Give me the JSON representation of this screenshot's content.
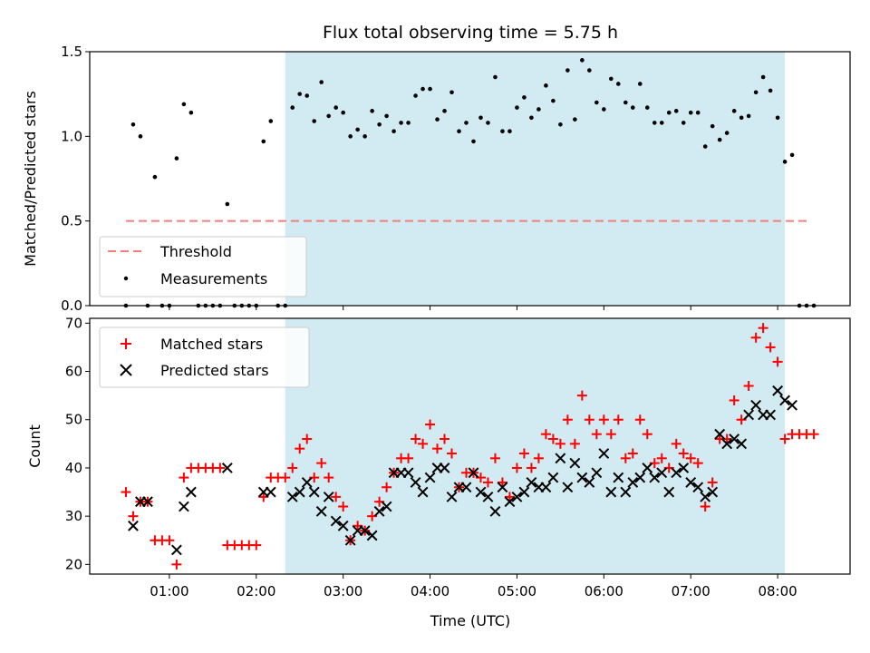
{
  "chart_data": [
    {
      "type": "scatter",
      "title": "Flux total observing time = 5.75 h",
      "xlabel": "",
      "ylabel": "Matched/Predicted stars",
      "xlim": [
        "00:05",
        "08:50"
      ],
      "ylim": [
        0,
        1.5
      ],
      "yticks": [
        0.0,
        0.5,
        1.0,
        1.5
      ],
      "ytick_labels": [
        "0.0",
        "0.5",
        "1.0",
        "1.5"
      ],
      "grid": false,
      "legend_position": "lower-left",
      "shaded_region": {
        "x_start": "02:20",
        "x_end": "08:05",
        "color": "#add8e6"
      },
      "threshold": {
        "name": "Threshold",
        "y": 0.5,
        "x_start": "00:30",
        "x_end": "08:20",
        "color": "#f08080",
        "style": "dashed"
      },
      "series": [
        {
          "name": "Measurements",
          "color": "#000000",
          "marker": "dot",
          "x": [
            "00:30",
            "00:35",
            "00:40",
            "00:45",
            "00:50",
            "00:55",
            "01:00",
            "01:05",
            "01:10",
            "01:15",
            "01:20",
            "01:25",
            "01:30",
            "01:35",
            "01:40",
            "01:45",
            "01:50",
            "01:55",
            "02:00",
            "02:05",
            "02:10",
            "02:15",
            "02:20",
            "02:25",
            "02:30",
            "02:35",
            "02:40",
            "02:45",
            "02:50",
            "02:55",
            "03:00",
            "03:05",
            "03:10",
            "03:15",
            "03:20",
            "03:25",
            "03:30",
            "03:35",
            "03:40",
            "03:45",
            "03:50",
            "03:55",
            "04:00",
            "04:05",
            "04:10",
            "04:15",
            "04:20",
            "04:25",
            "04:30",
            "04:35",
            "04:40",
            "04:45",
            "04:50",
            "04:55",
            "05:00",
            "05:05",
            "05:10",
            "05:15",
            "05:20",
            "05:25",
            "05:30",
            "05:35",
            "05:40",
            "05:45",
            "05:50",
            "05:55",
            "06:00",
            "06:05",
            "06:10",
            "06:15",
            "06:20",
            "06:25",
            "06:30",
            "06:35",
            "06:40",
            "06:45",
            "06:50",
            "06:55",
            "07:00",
            "07:05",
            "07:10",
            "07:15",
            "07:20",
            "07:25",
            "07:30",
            "07:35",
            "07:40",
            "07:45",
            "07:50",
            "07:55",
            "08:00",
            "08:05",
            "08:10",
            "08:15",
            "08:20",
            "08:25"
          ],
          "y": [
            0.0,
            1.07,
            1.0,
            0.0,
            0.76,
            0.0,
            0.0,
            0.87,
            1.19,
            1.14,
            0.0,
            0.0,
            0.0,
            0.0,
            0.6,
            0.0,
            0.0,
            0.0,
            0.0,
            0.97,
            1.09,
            0.0,
            0.0,
            1.17,
            1.25,
            1.24,
            1.09,
            1.32,
            1.12,
            1.17,
            1.14,
            1.0,
            1.04,
            1.0,
            1.15,
            1.07,
            1.12,
            1.03,
            1.08,
            1.08,
            1.24,
            1.28,
            1.28,
            1.1,
            1.15,
            1.26,
            1.03,
            1.08,
            0.97,
            1.11,
            1.08,
            1.35,
            1.03,
            1.03,
            1.17,
            1.23,
            1.11,
            1.16,
            1.3,
            1.21,
            1.07,
            1.39,
            1.1,
            1.45,
            1.39,
            1.2,
            1.16,
            1.34,
            1.31,
            1.2,
            1.17,
            1.31,
            1.17,
            1.08,
            1.08,
            1.14,
            1.15,
            1.08,
            1.14,
            1.14,
            0.94,
            1.06,
            0.98,
            1.02,
            1.15,
            1.11,
            1.12,
            1.26,
            1.35,
            1.27,
            1.11,
            0.85,
            0.89,
            0.0,
            0.0,
            0.0
          ]
        }
      ]
    },
    {
      "type": "scatter",
      "title": "",
      "xlabel": "Time (UTC)",
      "ylabel": "Count",
      "xlim": [
        "00:05",
        "08:50"
      ],
      "ylim": [
        18,
        71
      ],
      "yticks": [
        20,
        30,
        40,
        50,
        60,
        70
      ],
      "ytick_labels": [
        "20",
        "30",
        "40",
        "50",
        "60",
        "70"
      ],
      "xticks": [
        "01:00",
        "02:00",
        "03:00",
        "04:00",
        "05:00",
        "06:00",
        "07:00",
        "08:00"
      ],
      "grid": false,
      "legend_position": "upper-left",
      "shaded_region": {
        "x_start": "02:20",
        "x_end": "08:05",
        "color": "#add8e6"
      },
      "series": [
        {
          "name": "Matched stars",
          "color": "#ff0000",
          "marker": "plus",
          "x": [
            "00:30",
            "00:35",
            "00:40",
            "00:45",
            "00:50",
            "00:55",
            "01:00",
            "01:05",
            "01:10",
            "01:15",
            "01:20",
            "01:25",
            "01:30",
            "01:35",
            "01:40",
            "01:45",
            "01:50",
            "01:55",
            "02:00",
            "02:05",
            "02:10",
            "02:15",
            "02:20",
            "02:25",
            "02:30",
            "02:35",
            "02:40",
            "02:45",
            "02:50",
            "02:55",
            "03:00",
            "03:05",
            "03:10",
            "03:15",
            "03:20",
            "03:25",
            "03:30",
            "03:35",
            "03:40",
            "03:45",
            "03:50",
            "03:55",
            "04:00",
            "04:05",
            "04:10",
            "04:15",
            "04:20",
            "04:25",
            "04:30",
            "04:35",
            "04:40",
            "04:45",
            "04:50",
            "04:55",
            "05:00",
            "05:05",
            "05:10",
            "05:15",
            "05:20",
            "05:25",
            "05:30",
            "05:35",
            "05:40",
            "05:45",
            "05:50",
            "05:55",
            "06:00",
            "06:05",
            "06:10",
            "06:15",
            "06:20",
            "06:25",
            "06:30",
            "06:35",
            "06:40",
            "06:45",
            "06:50",
            "06:55",
            "07:00",
            "07:05",
            "07:10",
            "07:15",
            "07:20",
            "07:25",
            "07:30",
            "07:35",
            "07:40",
            "07:45",
            "07:50",
            "07:55",
            "08:00",
            "08:05",
            "08:10",
            "08:15",
            "08:20",
            "08:25"
          ],
          "y": [
            35,
            30,
            33,
            33,
            25,
            25,
            25,
            20,
            38,
            40,
            40,
            40,
            40,
            40,
            24,
            24,
            24,
            24,
            24,
            34,
            38,
            38,
            38,
            40,
            44,
            46,
            38,
            41,
            38,
            34,
            32,
            25,
            28,
            27,
            30,
            33,
            36,
            39,
            42,
            42,
            46,
            45,
            49,
            44,
            46,
            43,
            36,
            39,
            39,
            38,
            37,
            42,
            37,
            34,
            40,
            43,
            40,
            42,
            47,
            46,
            45,
            50,
            45,
            55,
            50,
            47,
            50,
            47,
            50,
            42,
            43,
            50,
            47,
            41,
            42,
            40,
            45,
            43,
            42,
            41,
            32,
            37,
            46,
            46,
            54,
            50,
            57,
            67,
            69,
            65,
            62,
            46,
            47,
            47,
            47,
            47
          ]
        },
        {
          "name": "Predicted stars",
          "color": "#000000",
          "marker": "x",
          "x": [
            "00:30",
            "00:35",
            "00:40",
            "00:45",
            "00:50",
            "00:55",
            "01:00",
            "01:05",
            "01:10",
            "01:15",
            "01:20",
            "01:25",
            "01:30",
            "01:35",
            "01:40",
            "01:45",
            "01:50",
            "01:55",
            "02:00",
            "02:05",
            "02:10",
            "02:15",
            "02:20",
            "02:25",
            "02:30",
            "02:35",
            "02:40",
            "02:45",
            "02:50",
            "02:55",
            "03:00",
            "03:05",
            "03:10",
            "03:15",
            "03:20",
            "03:25",
            "03:30",
            "03:35",
            "03:40",
            "03:45",
            "03:50",
            "03:55",
            "04:00",
            "04:05",
            "04:10",
            "04:15",
            "04:20",
            "04:25",
            "04:30",
            "04:35",
            "04:40",
            "04:45",
            "04:50",
            "04:55",
            "05:00",
            "05:05",
            "05:10",
            "05:15",
            "05:20",
            "05:25",
            "05:30",
            "05:35",
            "05:40",
            "05:45",
            "05:50",
            "05:55",
            "06:00",
            "06:05",
            "06:10",
            "06:15",
            "06:20",
            "06:25",
            "06:30",
            "06:35",
            "06:40",
            "06:45",
            "06:50",
            "06:55",
            "07:00",
            "07:05",
            "07:10",
            "07:15",
            "07:20",
            "07:25",
            "07:30",
            "07:35",
            "07:40",
            "07:45",
            "07:50",
            "07:55",
            "08:00",
            "08:05",
            "08:10",
            "08:15",
            "08:20",
            "08:25"
          ],
          "y": [
            null,
            28,
            33,
            33,
            null,
            null,
            null,
            23,
            32,
            35,
            null,
            null,
            null,
            null,
            40,
            null,
            null,
            null,
            null,
            35,
            35,
            null,
            null,
            34,
            35,
            37,
            35,
            31,
            34,
            29,
            28,
            25,
            27,
            27,
            26,
            31,
            32,
            39,
            39,
            39,
            37,
            35,
            38,
            40,
            40,
            34,
            36,
            36,
            39,
            35,
            34,
            31,
            36,
            33,
            34,
            35,
            37,
            36,
            36,
            38,
            42,
            36,
            41,
            38,
            37,
            39,
            43,
            35,
            38,
            35,
            37,
            38,
            40,
            38,
            39,
            35,
            39,
            40,
            37,
            36,
            34,
            35,
            47,
            45,
            46,
            45,
            51,
            53,
            51,
            51,
            56,
            54,
            53,
            null,
            null,
            null
          ]
        }
      ]
    }
  ]
}
